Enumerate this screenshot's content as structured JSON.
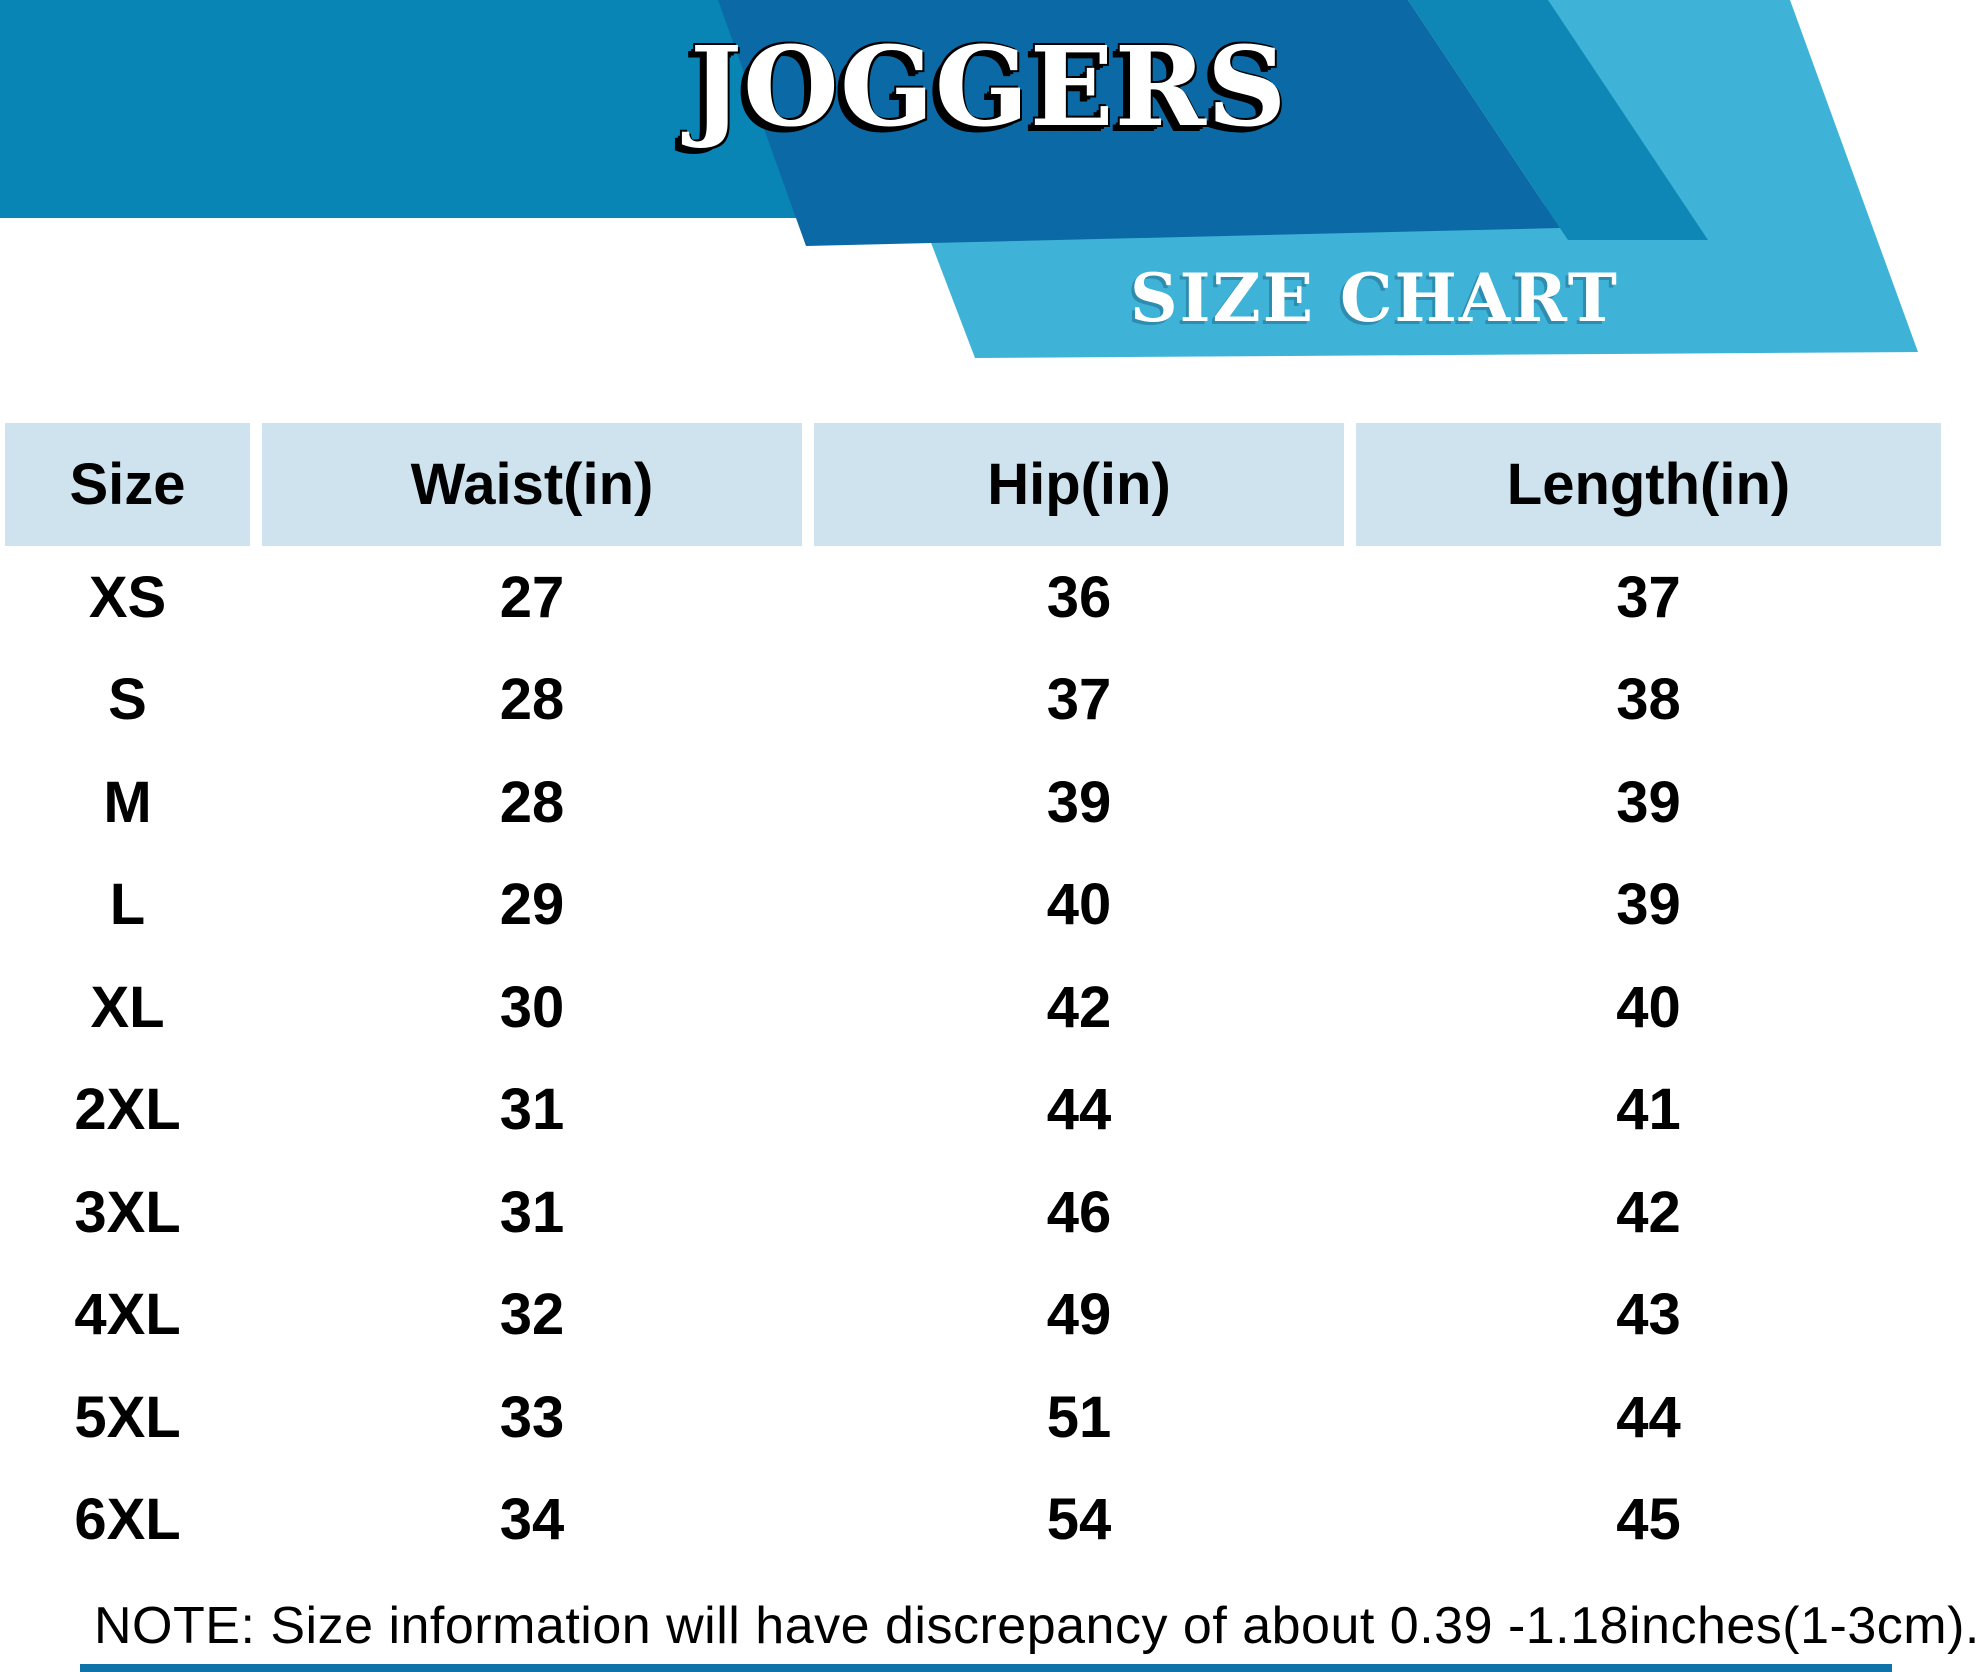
{
  "banner": {
    "title": "JOGGERS",
    "subtitle": "SIZE CHART"
  },
  "chart_data": {
    "type": "table",
    "title": "JOGGERS",
    "subtitle": "SIZE CHART",
    "columns": [
      "Size",
      "Waist(in)",
      "Hip(in)",
      "Length(in)"
    ],
    "rows": [
      [
        "XS",
        "27",
        "36",
        "37"
      ],
      [
        "S",
        "28",
        "37",
        "38"
      ],
      [
        "M",
        "28",
        "39",
        "39"
      ],
      [
        "L",
        "29",
        "40",
        "39"
      ],
      [
        "XL",
        "30",
        "42",
        "40"
      ],
      [
        "2XL",
        "31",
        "44",
        "41"
      ],
      [
        "3XL",
        "31",
        "46",
        "42"
      ],
      [
        "4XL",
        "32",
        "49",
        "43"
      ],
      [
        "5XL",
        "33",
        "51",
        "44"
      ],
      [
        "6XL",
        "34",
        "54",
        "45"
      ]
    ],
    "note": "NOTE: Size information will have discrepancy of about 0.39 -1.18inches(1-3cm)."
  },
  "colors": {
    "band_blue": "#0884b5",
    "dark_blue": "#0b69a5",
    "strip_blue": "#0e86b6",
    "cyan": "#3fb3d7",
    "header_cell": "#cfe3ef",
    "zebra_row": "#ededf0",
    "bottom_bar": "#0f73aa"
  }
}
